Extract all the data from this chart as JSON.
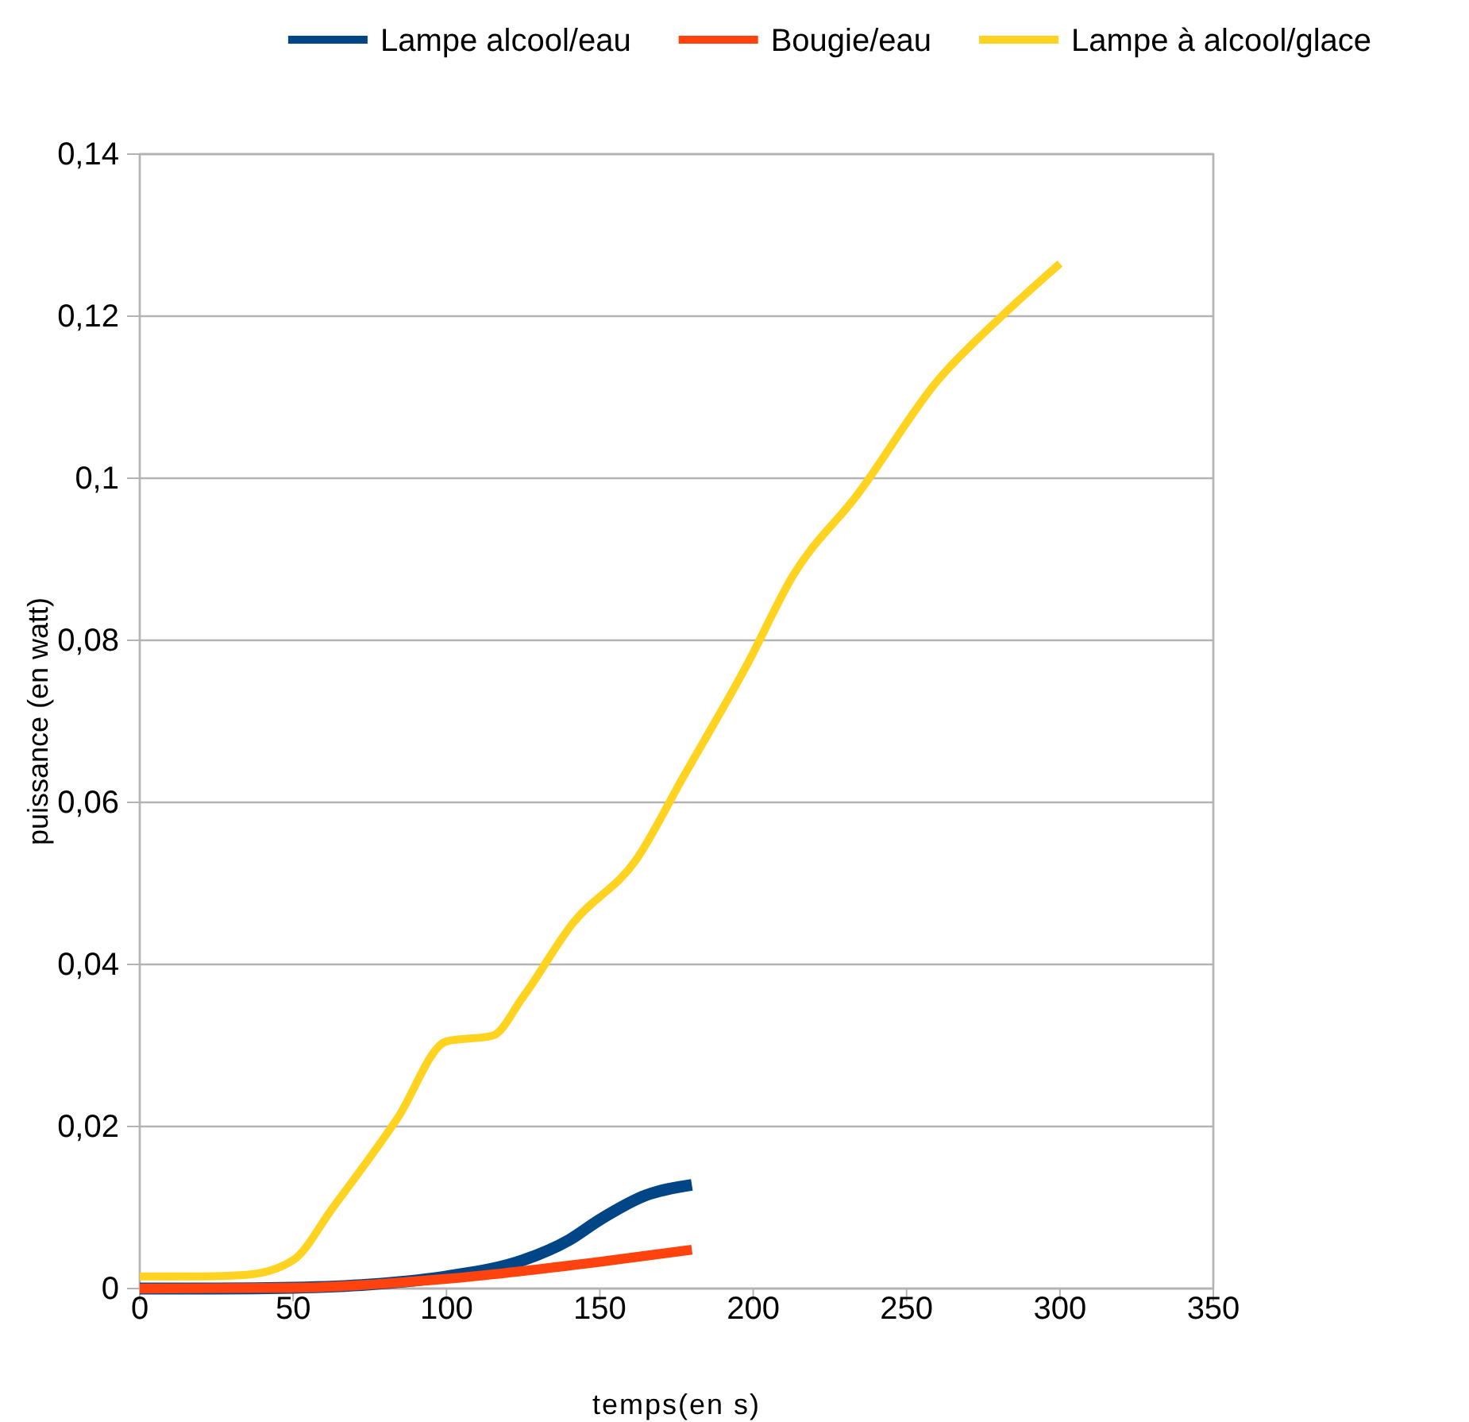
{
  "chart_data": {
    "type": "line",
    "xlabel": "temps(en s)",
    "ylabel": "puissance (en watt)",
    "xlim": [
      0,
      350
    ],
    "xticks": [
      0,
      50,
      100,
      150,
      200,
      250,
      300,
      350
    ],
    "ylim": [
      0,
      0.14
    ],
    "yticks": [
      {
        "value": 0,
        "label": "0"
      },
      {
        "value": 0.02,
        "label": "0,02"
      },
      {
        "value": 0.04,
        "label": "0,04"
      },
      {
        "value": 0.06,
        "label": "0,06"
      },
      {
        "value": 0.08,
        "label": "0,08"
      },
      {
        "value": 0.1,
        "label": "0,1"
      },
      {
        "value": 0.12,
        "label": "0,12"
      },
      {
        "value": 0.14,
        "label": "0,14"
      }
    ],
    "grid": "y",
    "legend": "top",
    "marker": "none",
    "line_style": "solid",
    "series": [
      {
        "name": "Lampe alcool/eau",
        "color": "#004586",
        "x": [
          0,
          25,
          50,
          75,
          100,
          125,
          140,
          150,
          165,
          180
        ],
        "values": [
          0,
          0,
          0.0001,
          0.0005,
          0.0015,
          0.0035,
          0.006,
          0.0085,
          0.0115,
          0.0128
        ]
      },
      {
        "name": "Bougie/eau",
        "color": "#ff420e",
        "x": [
          0,
          50,
          100,
          150,
          180
        ],
        "values": [
          0,
          0.0001,
          0.0012,
          0.0033,
          0.0048
        ]
      },
      {
        "name": "Lampe à alcool/glace",
        "color": "#ffd320",
        "x": [
          0,
          20,
          35,
          50,
          63,
          84,
          100,
          115,
          125,
          141,
          162,
          177,
          198,
          213,
          234,
          260,
          281,
          300
        ],
        "values": [
          0.0015,
          0.0015,
          0.0017,
          0.0035,
          0.01,
          0.021,
          0.0305,
          0.0312,
          0.036,
          0.045,
          0.053,
          0.063,
          0.077,
          0.088,
          0.098,
          0.112,
          0.12,
          0.1265
        ]
      }
    ]
  }
}
